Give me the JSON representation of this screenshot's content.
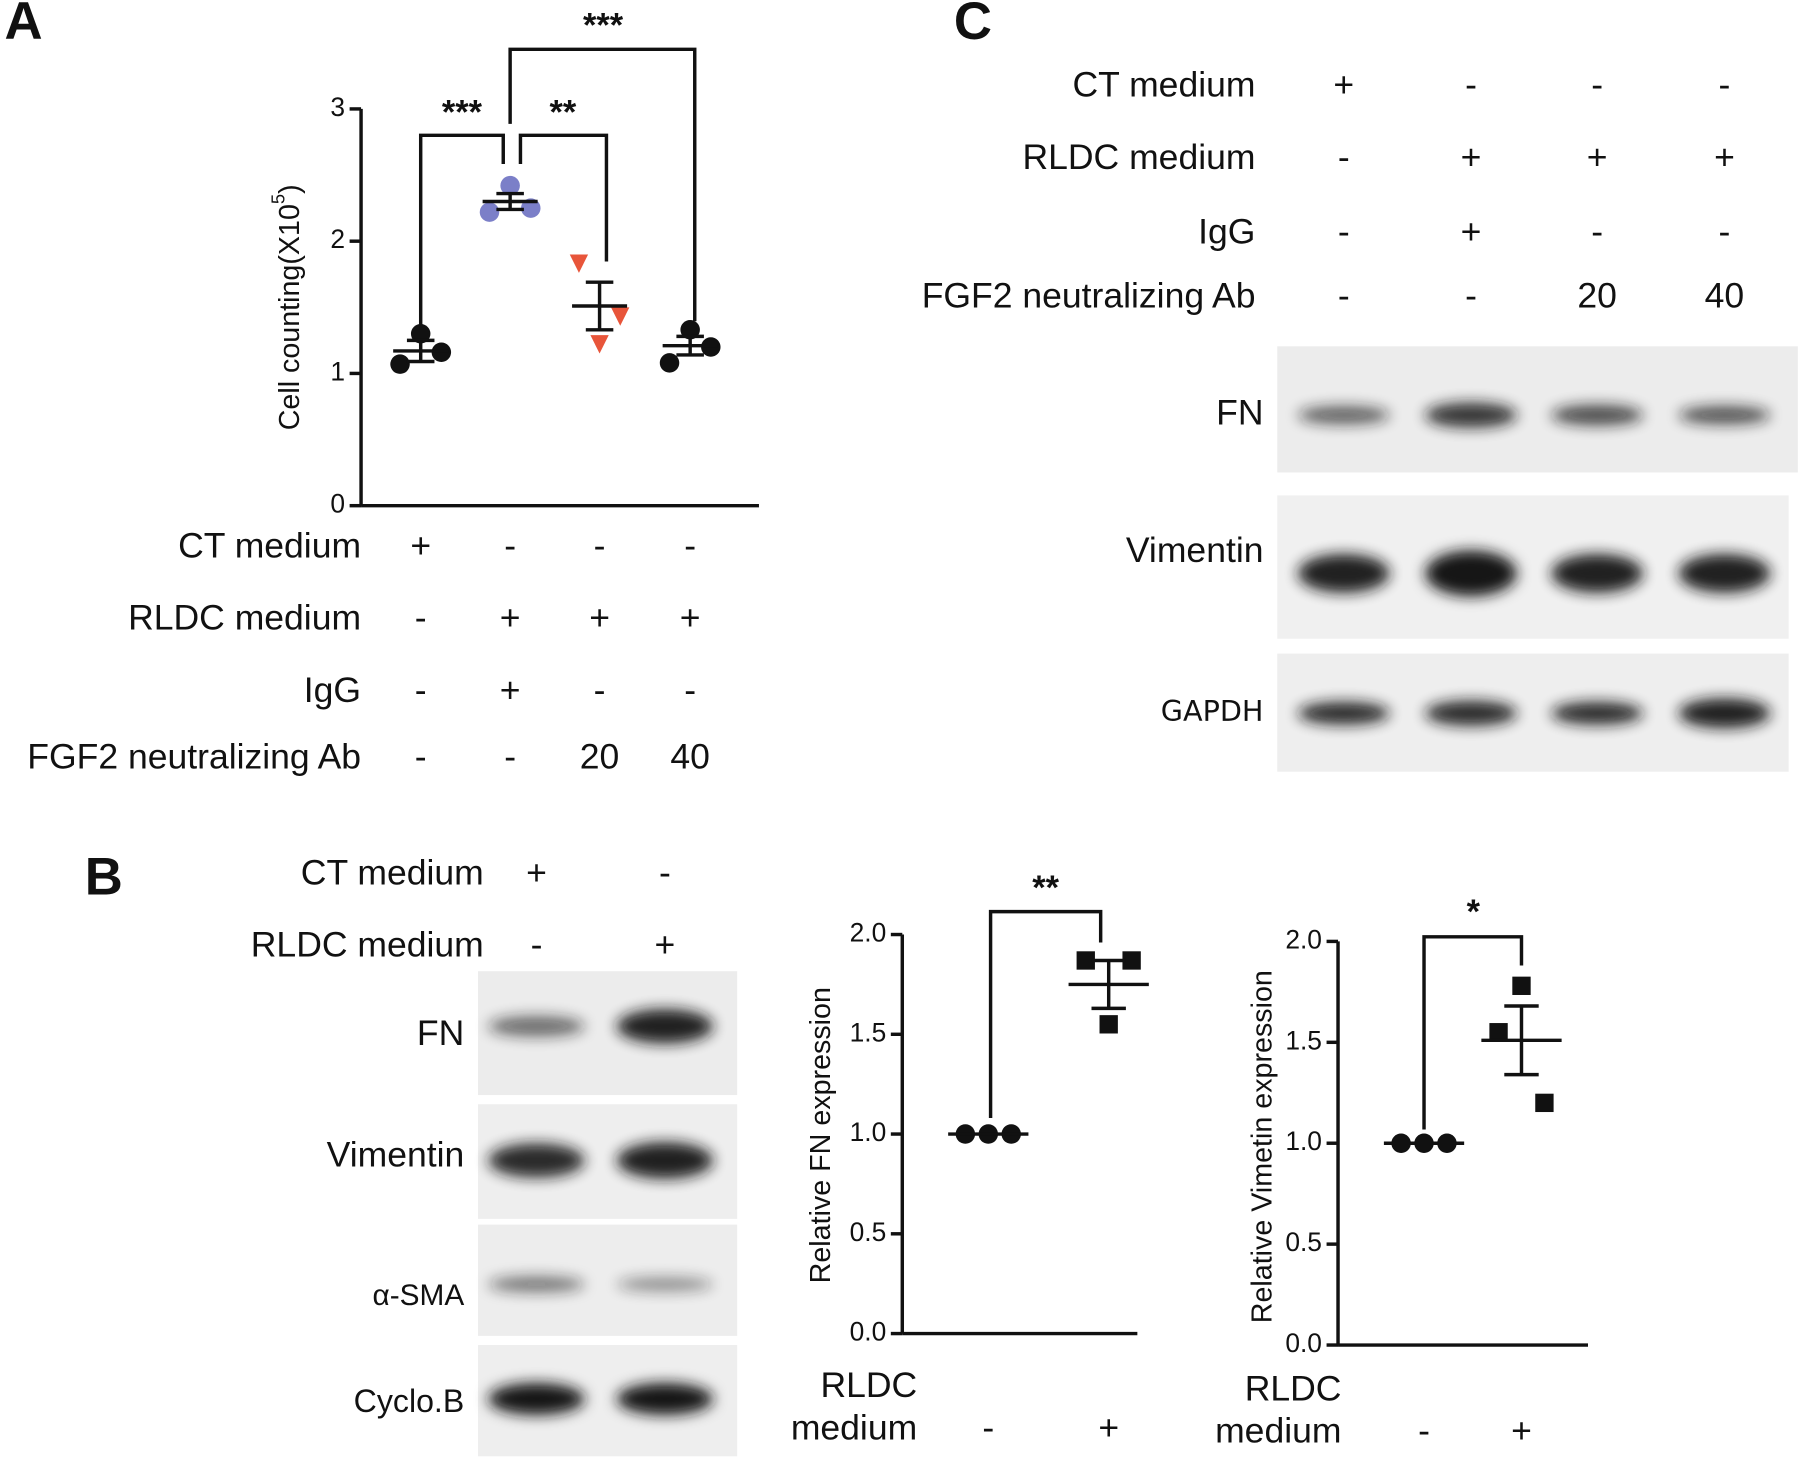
{
  "panel_labels": [
    "A",
    "B",
    "C"
  ],
  "chart_data": [
    {
      "type": "dot",
      "ylabel": [
        "Cell counting(X10",
        "5",
        ")"
      ],
      "ylim": [
        0,
        3
      ],
      "yticks": [
        0,
        1,
        2,
        3
      ],
      "groups": [
        {
          "marker": "circle",
          "color": "#111111",
          "values": [
            1.07,
            1.3,
            1.16
          ],
          "mean": 1.17,
          "sem": 0.08
        },
        {
          "marker": "circle",
          "color": "#7b7fc8",
          "values": [
            2.22,
            2.42,
            2.25
          ],
          "mean": 2.3,
          "sem": 0.06
        },
        {
          "marker": "triangle-down",
          "color": "#e8553a",
          "values": [
            1.83,
            1.22,
            1.43
          ],
          "mean": 1.51,
          "sem": 0.18
        },
        {
          "marker": "circle",
          "color": "#111111",
          "values": [
            1.08,
            1.33,
            1.2
          ],
          "mean": 1.21,
          "sem": 0.07
        }
      ],
      "conditions": [
        {
          "label": "CT medium",
          "values": [
            "+",
            "-",
            "-",
            "-"
          ]
        },
        {
          "label": "RLDC medium",
          "values": [
            "-",
            "+",
            "+",
            "+"
          ]
        },
        {
          "label": "IgG",
          "values": [
            "-",
            "+",
            "-",
            "-"
          ]
        },
        {
          "label": "FGF2 neutralizing Ab",
          "values": [
            "-",
            "-",
            20,
            40
          ]
        }
      ],
      "significance": [
        {
          "label": "***",
          "between": [
            0,
            1
          ]
        },
        {
          "label": "**",
          "between": [
            1,
            2
          ]
        },
        {
          "label": "***",
          "between": [
            1,
            3
          ]
        }
      ]
    },
    {
      "type": "dot",
      "ylabel": [
        "Relative FN expression"
      ],
      "ylim": [
        0,
        2
      ],
      "yticks": [
        {
          "value": 0,
          "label": "0.0"
        },
        {
          "value": 0.5,
          "label": "0.5"
        },
        {
          "value": 1,
          "label": "1.0"
        },
        {
          "value": 1.5,
          "label": "1.5"
        },
        {
          "value": 2,
          "label": "2.0"
        }
      ],
      "groups": [
        {
          "marker": "circle",
          "color": "#111111",
          "values": [
            1,
            1,
            1
          ],
          "mean": 1,
          "sem": 0
        },
        {
          "marker": "square",
          "color": "#111111",
          "values": [
            1.87,
            1.55,
            1.87
          ],
          "mean": 1.75,
          "sem": 0.12
        }
      ],
      "conditions": [
        {
          "label": [
            "RLDC",
            "medium"
          ],
          "values": [
            "-",
            "+"
          ]
        }
      ],
      "significance": [
        {
          "label": "**",
          "between": [
            0,
            1
          ]
        }
      ]
    },
    {
      "type": "dot",
      "ylabel": [
        "Relative Vimetin expression"
      ],
      "ylim": [
        0,
        2
      ],
      "yticks": [
        {
          "value": 0,
          "label": "0.0"
        },
        {
          "value": 0.5,
          "label": "0.5"
        },
        {
          "value": 1,
          "label": "1.0"
        },
        {
          "value": 1.5,
          "label": "1.5"
        },
        {
          "value": 2,
          "label": "2.0"
        }
      ],
      "groups": [
        {
          "marker": "circle",
          "color": "#111111",
          "values": [
            1,
            1,
            1
          ],
          "mean": 1,
          "sem": 0
        },
        {
          "marker": "square",
          "color": "#111111",
          "values": [
            1.55,
            1.78,
            1.2
          ],
          "mean": 1.51,
          "sem": 0.17
        }
      ],
      "conditions": [
        {
          "label": [
            "RLDC",
            "medium"
          ],
          "values": [
            "-",
            "+"
          ]
        }
      ],
      "significance": [
        {
          "label": "*",
          "between": [
            0,
            1
          ]
        }
      ]
    }
  ],
  "blots": [
    {
      "conditions": [
        {
          "label": "CT medium",
          "values": [
            "+",
            "-",
            "-",
            "-"
          ]
        },
        {
          "label": "RLDC medium",
          "values": [
            "-",
            "+",
            "+",
            "+"
          ]
        },
        {
          "label": "IgG",
          "values": [
            "-",
            "+",
            "-",
            "-"
          ]
        },
        {
          "label": "FGF2 neutralizing Ab",
          "values": [
            "-",
            "-",
            20,
            40
          ]
        }
      ],
      "bands": [
        "FN",
        "Vimentin",
        "GAPDH"
      ]
    },
    {
      "conditions": [
        {
          "label": "CT medium",
          "values": [
            "+",
            "-"
          ]
        },
        {
          "label": "RLDC medium",
          "values": [
            "-",
            "+"
          ]
        }
      ],
      "bands": [
        "FN",
        "Vimentin",
        "α-SMA",
        "Cyclo.B"
      ]
    }
  ]
}
